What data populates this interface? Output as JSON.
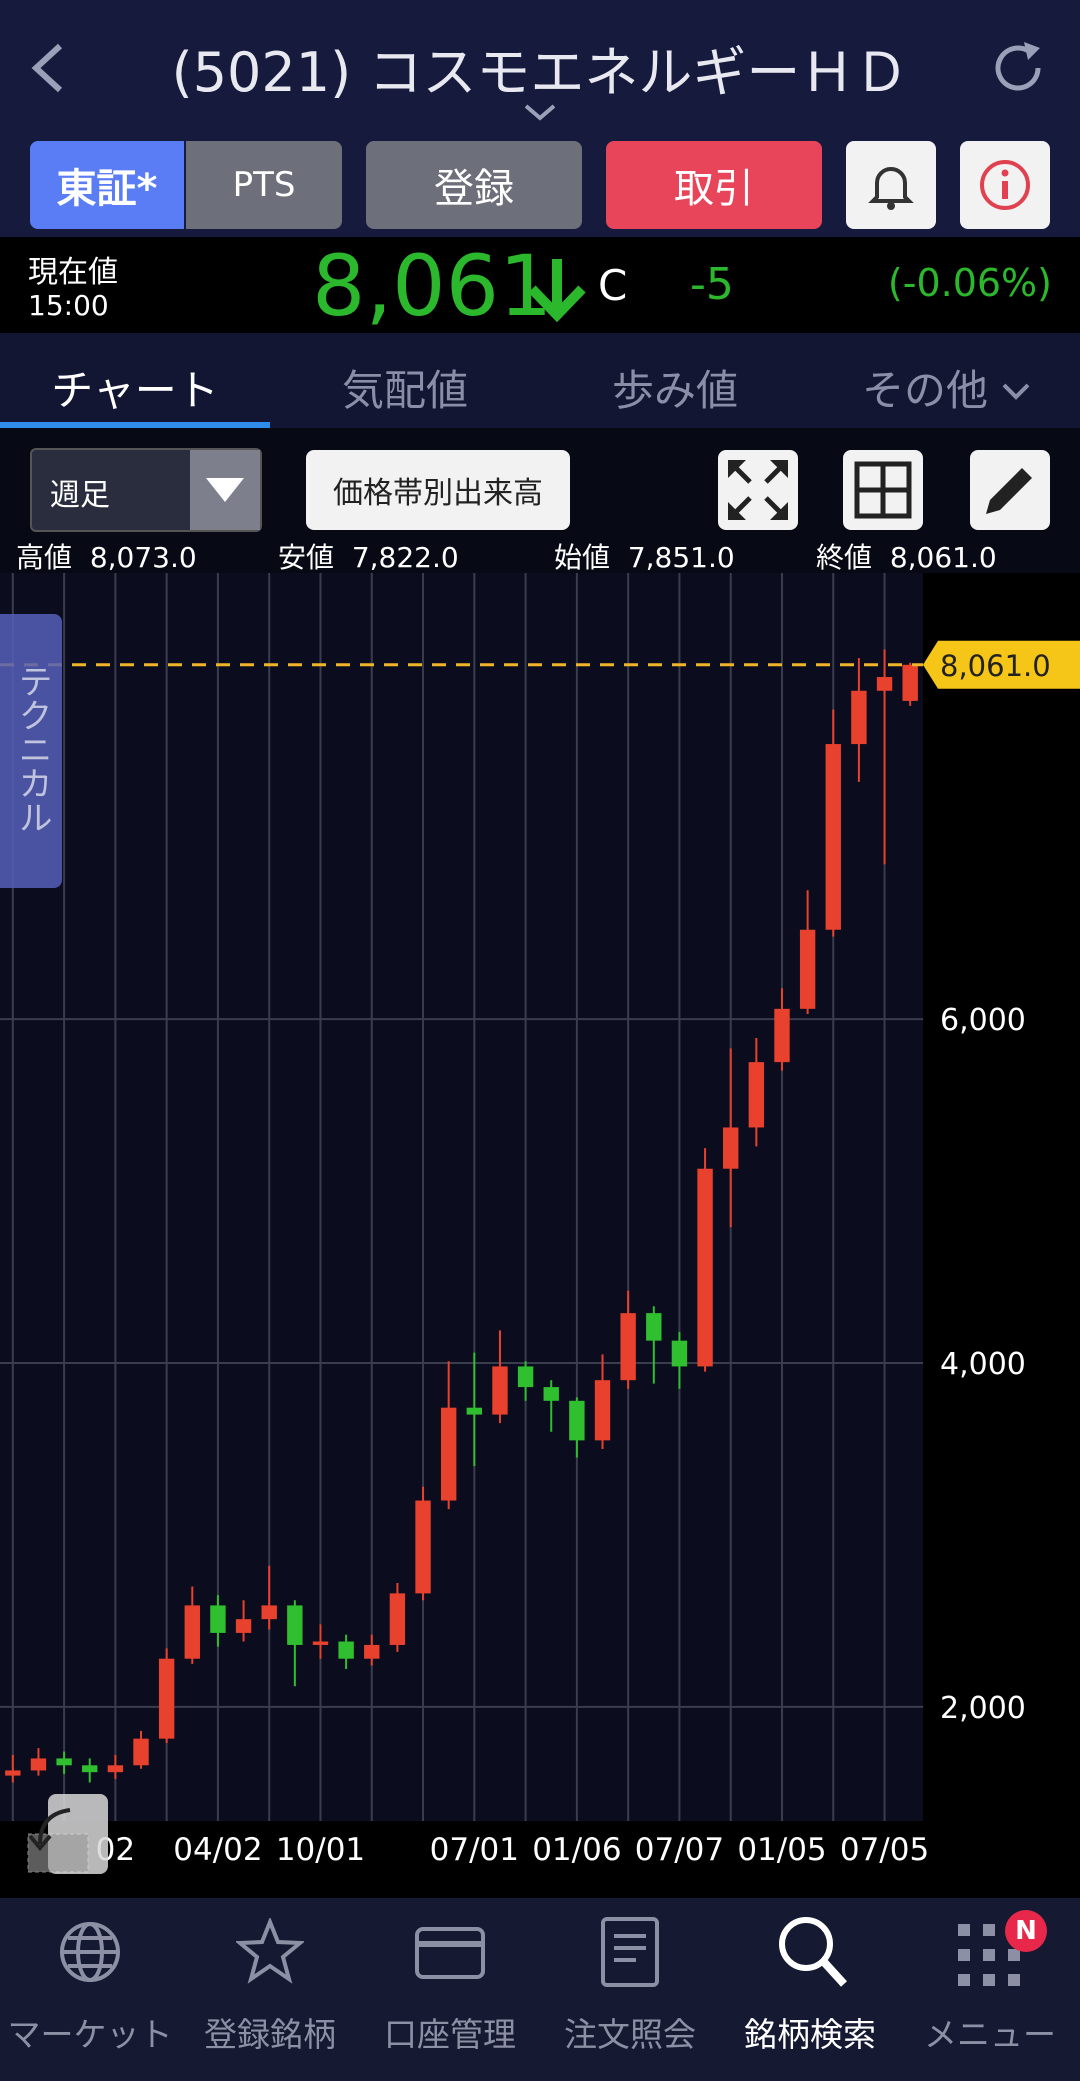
{
  "header": {
    "title": "(5021) コスモエネルギーＨＤ"
  },
  "buttons": {
    "market": "東証*",
    "pts": "PTS",
    "register": "登録",
    "trade": "取引"
  },
  "quote": {
    "label": "現在値",
    "time": "15:00",
    "price": "8,061",
    "flag": "C",
    "change": "-5",
    "change_pct": "(-0.06%)"
  },
  "tabs": [
    "チャート",
    "気配値",
    "歩み値",
    "その他"
  ],
  "toolbar": {
    "period": "週足",
    "volume_profile": "価格帯別出来高"
  },
  "ohlc_summary": {
    "high_label": "高値",
    "high": "8,073.0",
    "low_label": "安値",
    "low": "7,822.0",
    "open_label": "始値",
    "open": "7,851.0",
    "close_label": "終値",
    "close": "8,061.0"
  },
  "side_tab": "テクニカル",
  "chart_data": {
    "type": "candlestick",
    "categories": [
      null,
      null,
      null,
      null,
      "02",
      null,
      null,
      null,
      "04/02",
      null,
      null,
      null,
      "10/01",
      null,
      null,
      null,
      null,
      null,
      "07/01",
      null,
      null,
      null,
      "01/06",
      null,
      null,
      null,
      "07/07",
      null,
      null,
      null,
      "01/05",
      null,
      null,
      null,
      "07/05",
      null
    ],
    "open": [
      1600,
      1630,
      1700,
      1660,
      1620,
      1660,
      1815,
      2280,
      2590,
      2430,
      2510,
      2590,
      2360,
      2380,
      2280,
      2360,
      2660,
      3200,
      3740,
      3700,
      3980,
      3860,
      3780,
      3550,
      3900,
      4290,
      4130,
      3980,
      5130,
      5370,
      5750,
      6060,
      6520,
      7600,
      7910,
      7851
    ],
    "high": [
      1720,
      1760,
      1740,
      1700,
      1720,
      1860,
      2340,
      2700,
      2650,
      2620,
      2820,
      2620,
      2480,
      2420,
      2420,
      2720,
      3280,
      4010,
      4060,
      4190,
      4010,
      3900,
      3800,
      4050,
      4420,
      4330,
      4180,
      5250,
      5830,
      5890,
      6180,
      6750,
      7800,
      8100,
      8150,
      8073
    ],
    "low": [
      1560,
      1600,
      1610,
      1560,
      1580,
      1640,
      1790,
      2250,
      2350,
      2380,
      2450,
      2120,
      2280,
      2220,
      2240,
      2320,
      2620,
      3150,
      3400,
      3650,
      3780,
      3600,
      3450,
      3500,
      3850,
      3880,
      3850,
      3950,
      4790,
      5260,
      5700,
      6030,
      6480,
      7380,
      6900,
      7822
    ],
    "close": [
      1630,
      1700,
      1660,
      1620,
      1660,
      1815,
      2280,
      2590,
      2430,
      2510,
      2590,
      2360,
      2380,
      2280,
      2360,
      2660,
      3200,
      3740,
      3700,
      3980,
      3860,
      3780,
      3550,
      3900,
      4290,
      4130,
      3980,
      5130,
      5370,
      5750,
      6060,
      6520,
      7600,
      7910,
      7990,
      8061
    ],
    "up_color": "#e8412e",
    "down_color": "#2fbf2f",
    "ylim": [
      1336,
      8595
    ],
    "yticks": [
      {
        "value": 2000,
        "label": "2,000"
      },
      {
        "value": 4000,
        "label": "4,000"
      },
      {
        "value": 6000,
        "label": "6,000"
      }
    ],
    "last_price": {
      "value": 8061,
      "label": "8,061.0"
    },
    "grid": true
  },
  "nav": [
    "マーケット",
    "登録銘柄",
    "口座管理",
    "注文照会",
    "銘柄検索",
    "メニュー"
  ],
  "nav_badge": "N"
}
